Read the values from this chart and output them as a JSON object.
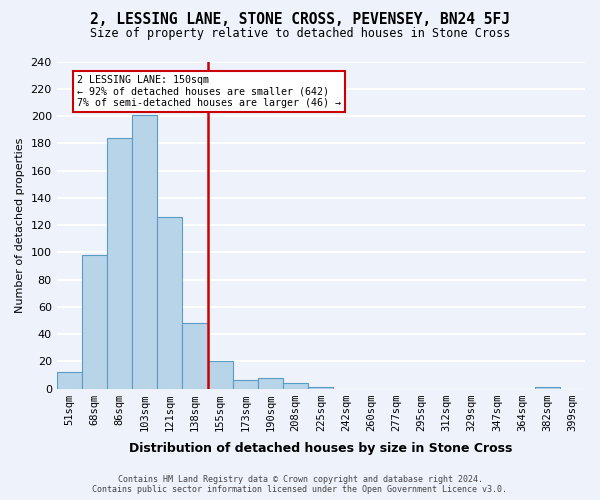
{
  "title": "2, LESSING LANE, STONE CROSS, PEVENSEY, BN24 5FJ",
  "subtitle": "Size of property relative to detached houses in Stone Cross",
  "xlabel": "Distribution of detached houses by size in Stone Cross",
  "ylabel": "Number of detached properties",
  "bar_color": "#b8d4e8",
  "bar_edge_color": "#5a9cc5",
  "bins": [
    "51sqm",
    "68sqm",
    "86sqm",
    "103sqm",
    "121sqm",
    "138sqm",
    "155sqm",
    "173sqm",
    "190sqm",
    "208sqm",
    "225sqm",
    "242sqm",
    "260sqm",
    "277sqm",
    "295sqm",
    "312sqm",
    "329sqm",
    "347sqm",
    "364sqm",
    "382sqm",
    "399sqm"
  ],
  "values": [
    12,
    98,
    184,
    201,
    126,
    48,
    20,
    6,
    8,
    4,
    1,
    0,
    0,
    0,
    0,
    0,
    0,
    0,
    0,
    1,
    0
  ],
  "vline_x_index": 6,
  "vline_color": "#cc0000",
  "annotation_title": "2 LESSING LANE: 150sqm",
  "annotation_line1": "← 92% of detached houses are smaller (642)",
  "annotation_line2": "7% of semi-detached houses are larger (46) →",
  "annotation_box_color": "#ffffff",
  "annotation_box_edge": "#cc0000",
  "ylim": [
    0,
    240
  ],
  "yticks": [
    0,
    20,
    40,
    60,
    80,
    100,
    120,
    140,
    160,
    180,
    200,
    220,
    240
  ],
  "footer1": "Contains HM Land Registry data © Crown copyright and database right 2024.",
  "footer2": "Contains public sector information licensed under the Open Government Licence v3.0.",
  "bg_color": "#eef2fa",
  "grid_color": "#ffffff"
}
